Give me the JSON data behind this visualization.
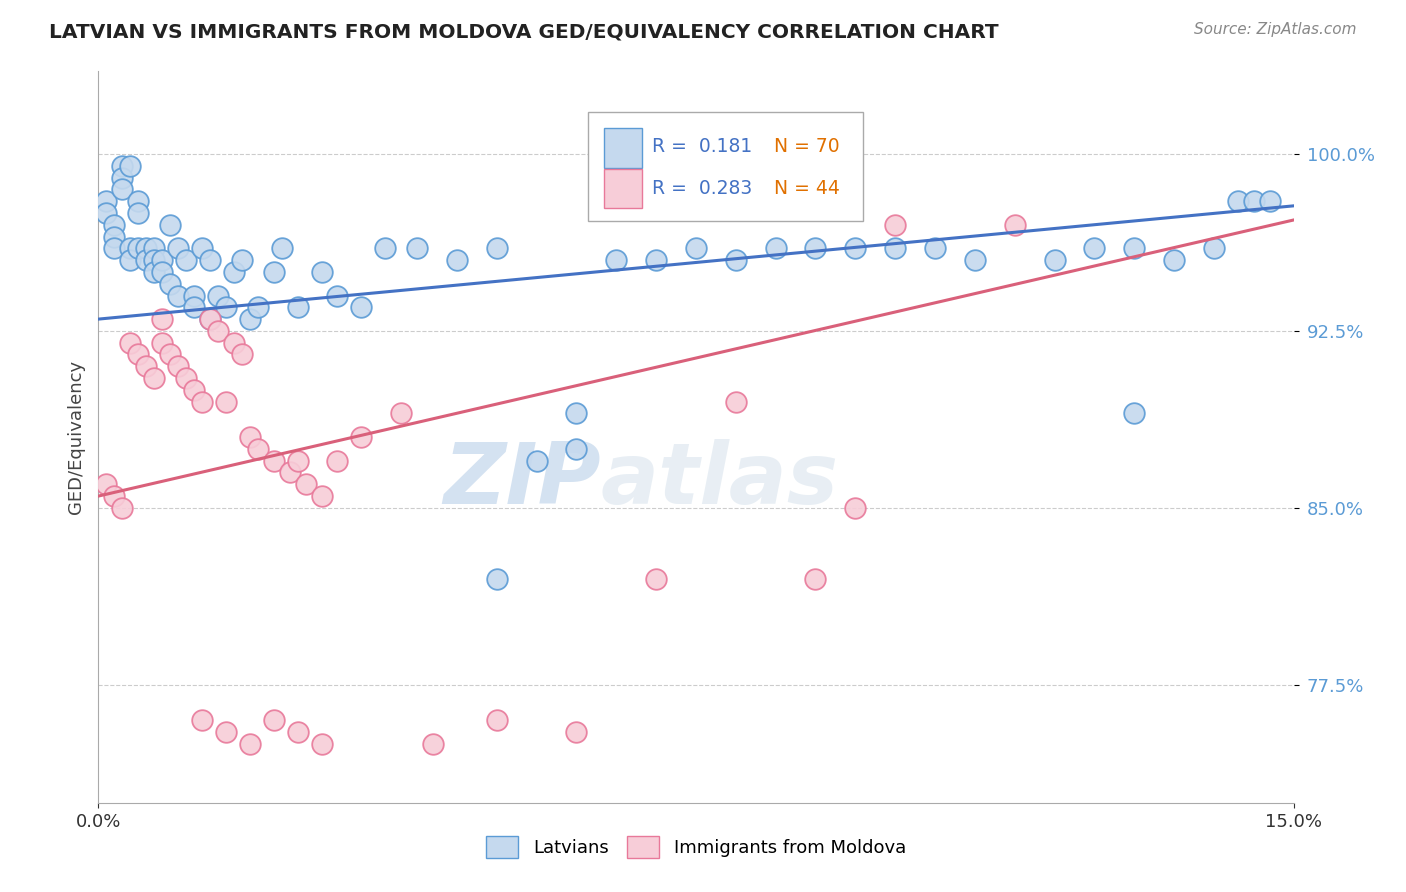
{
  "title": "LATVIAN VS IMMIGRANTS FROM MOLDOVA GED/EQUIVALENCY CORRELATION CHART",
  "source": "Source: ZipAtlas.com",
  "ylabel": "GED/Equivalency",
  "ytick_values": [
    0.775,
    0.85,
    0.925,
    1.0
  ],
  "xmin": 0.0,
  "xmax": 0.15,
  "ymin": 0.725,
  "ymax": 1.035,
  "color_latvian_fill": "#c5d9ee",
  "color_latvian_edge": "#5b9bd5",
  "color_moldova_fill": "#f7cdd8",
  "color_moldova_edge": "#e8799a",
  "color_line_latvian": "#4472c4",
  "color_line_moldova": "#d9607a",
  "color_ytick": "#5b9bd5",
  "watermark_color": "#dce8f5",
  "watermark_text": "ZIPatlas",
  "legend_r1": "R =  0.181",
  "legend_n1": "N = 70",
  "legend_r2": "R =  0.283",
  "legend_n2": "N = 44",
  "blue_line_x0": 0.0,
  "blue_line_y0": 0.93,
  "blue_line_x1": 0.15,
  "blue_line_y1": 0.978,
  "pink_line_x0": 0.0,
  "pink_line_y0": 0.855,
  "pink_line_x1": 0.15,
  "pink_line_y1": 0.972,
  "lat_x": [
    0.001,
    0.001,
    0.002,
    0.002,
    0.002,
    0.003,
    0.003,
    0.003,
    0.004,
    0.004,
    0.004,
    0.005,
    0.005,
    0.005,
    0.006,
    0.006,
    0.007,
    0.007,
    0.007,
    0.008,
    0.008,
    0.009,
    0.009,
    0.01,
    0.01,
    0.011,
    0.012,
    0.012,
    0.013,
    0.014,
    0.014,
    0.015,
    0.016,
    0.017,
    0.018,
    0.019,
    0.02,
    0.022,
    0.023,
    0.025,
    0.028,
    0.03,
    0.033,
    0.036,
    0.04,
    0.045,
    0.05,
    0.055,
    0.06,
    0.065,
    0.07,
    0.075,
    0.08,
    0.085,
    0.09,
    0.095,
    0.1,
    0.105,
    0.11,
    0.12,
    0.125,
    0.13,
    0.135,
    0.14,
    0.143,
    0.145,
    0.147,
    0.05,
    0.06,
    0.13
  ],
  "lat_y": [
    0.98,
    0.975,
    0.97,
    0.965,
    0.96,
    0.995,
    0.99,
    0.985,
    0.995,
    0.96,
    0.955,
    0.98,
    0.975,
    0.96,
    0.96,
    0.955,
    0.96,
    0.955,
    0.95,
    0.955,
    0.95,
    0.97,
    0.945,
    0.96,
    0.94,
    0.955,
    0.94,
    0.935,
    0.96,
    0.955,
    0.93,
    0.94,
    0.935,
    0.95,
    0.955,
    0.93,
    0.935,
    0.95,
    0.96,
    0.935,
    0.95,
    0.94,
    0.935,
    0.96,
    0.96,
    0.955,
    0.96,
    0.87,
    0.875,
    0.955,
    0.955,
    0.96,
    0.955,
    0.96,
    0.96,
    0.96,
    0.96,
    0.96,
    0.955,
    0.955,
    0.96,
    0.96,
    0.955,
    0.96,
    0.98,
    0.98,
    0.98,
    0.82,
    0.89,
    0.89
  ],
  "mol_x": [
    0.001,
    0.002,
    0.003,
    0.004,
    0.005,
    0.006,
    0.007,
    0.008,
    0.008,
    0.009,
    0.01,
    0.011,
    0.012,
    0.013,
    0.014,
    0.015,
    0.016,
    0.017,
    0.018,
    0.019,
    0.02,
    0.022,
    0.024,
    0.025,
    0.026,
    0.028,
    0.03,
    0.033,
    0.038,
    0.042,
    0.05,
    0.06,
    0.07,
    0.08,
    0.09,
    0.095,
    0.1,
    0.115,
    0.022,
    0.025,
    0.028,
    0.013,
    0.016,
    0.019
  ],
  "mol_y": [
    0.86,
    0.855,
    0.85,
    0.92,
    0.915,
    0.91,
    0.905,
    0.93,
    0.92,
    0.915,
    0.91,
    0.905,
    0.9,
    0.895,
    0.93,
    0.925,
    0.895,
    0.92,
    0.915,
    0.88,
    0.875,
    0.87,
    0.865,
    0.87,
    0.86,
    0.855,
    0.87,
    0.88,
    0.89,
    0.75,
    0.76,
    0.755,
    0.82,
    0.895,
    0.82,
    0.85,
    0.97,
    0.97,
    0.76,
    0.755,
    0.75,
    0.76,
    0.755,
    0.75
  ]
}
